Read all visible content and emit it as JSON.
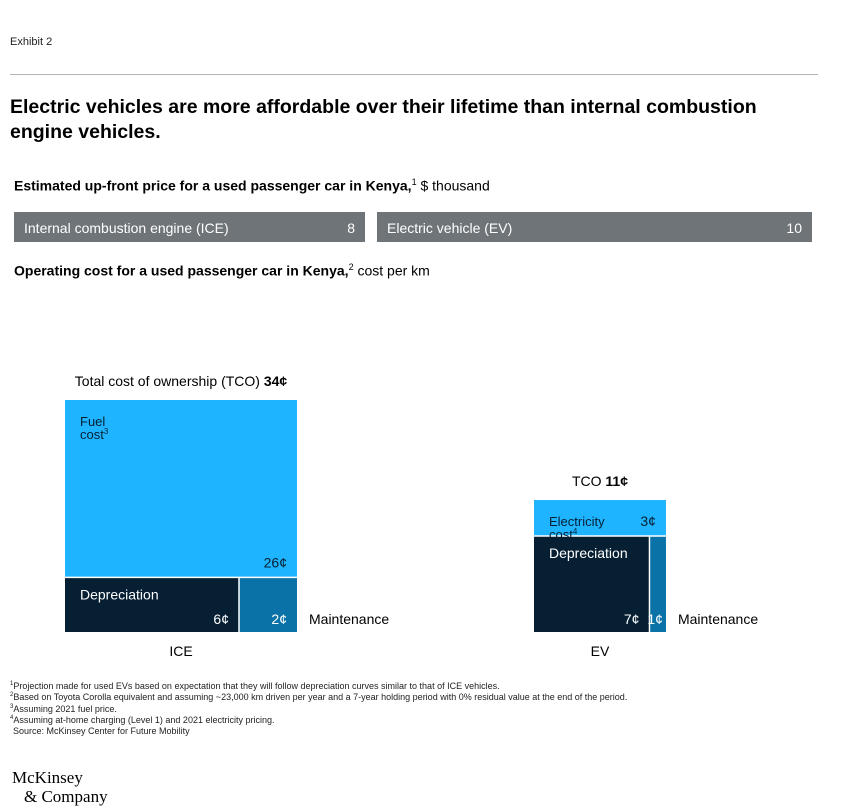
{
  "exhibit_label": "Exhibit 2",
  "title": "Electric vehicles are more affordable over their lifetime than internal combustion engine vehicles.",
  "upfront_price": {
    "heading_bold": "Estimated up-front price for a used passenger car in Kenya,",
    "heading_sup": "1",
    "heading_unit": " $ thousand",
    "bars": [
      {
        "label": "Internal combustion engine (ICE)",
        "value": "8",
        "color": "#6f7479"
      },
      {
        "label": "Electric vehicle (EV)",
        "value": "10",
        "color": "#6f7479"
      }
    ]
  },
  "operating_cost": {
    "heading_bold": "Operating cost for a used passenger car in Kenya,",
    "heading_sup": "2",
    "heading_unit": " cost per km"
  },
  "chart_data": {
    "type": "mekko",
    "unit": "¢ per km",
    "groups": [
      {
        "name": "ICE",
        "tco_label": "Total cost of ownership (TCO)",
        "tco_value": "34¢",
        "tco_number": 34,
        "segments": [
          {
            "key": "fuel",
            "label": "Fuel cost",
            "label_lines": [
              "Fuel",
              "cost"
            ],
            "sup": "3",
            "value": 26,
            "value_label": "26¢",
            "color": "#1fb4ff"
          },
          {
            "key": "depreciation",
            "label": "Depreciation",
            "label_lines": [
              "Depreciation"
            ],
            "sup": "",
            "value": 6,
            "value_label": "6¢",
            "color": "#061f33"
          },
          {
            "key": "maintenance",
            "label": "Maintenance",
            "label_lines": [],
            "sup": "",
            "value": 2,
            "value_label": "2¢",
            "color": "#0b72a8"
          }
        ],
        "side_label": "Maintenance"
      },
      {
        "name": "EV",
        "tco_label": "TCO",
        "tco_value": "11¢",
        "tco_number": 11,
        "segments": [
          {
            "key": "electricity",
            "label": "Electricity cost",
            "label_lines": [
              "Electricity",
              "cost"
            ],
            "sup": "4",
            "value": 3,
            "value_label": "3¢",
            "color": "#1fb4ff"
          },
          {
            "key": "depreciation",
            "label": "Depreciation",
            "label_lines": [
              "Depreciation"
            ],
            "sup": "",
            "value": 7,
            "value_label": "7¢",
            "color": "#061f33"
          },
          {
            "key": "maintenance",
            "label": "Maintenance",
            "label_lines": [],
            "sup": "",
            "value": 1,
            "value_label": "1¢",
            "color": "#0b72a8"
          }
        ],
        "side_label": "Maintenance"
      }
    ]
  },
  "footnotes": [
    {
      "mark": "1",
      "text": "Projection made for used EVs based on expectation that they will follow depreciation curves similar to that of ICE vehicles."
    },
    {
      "mark": "2",
      "text": "Based on Toyota Corolla equivalent and assuming ~23,000 km driven per year and a 7-year holding period with 0% residual value at the end of the period."
    },
    {
      "mark": "3",
      "text": "Assuming 2021 fuel price."
    },
    {
      "mark": "4",
      "text": "Assuming at-home charging (Level 1) and 2021 electricity pricing."
    },
    {
      "mark": "",
      "text": "Source: McKinsey Center for Future Mobility"
    }
  ],
  "logo": {
    "line1": "McKinsey",
    "line2": "& Company"
  }
}
